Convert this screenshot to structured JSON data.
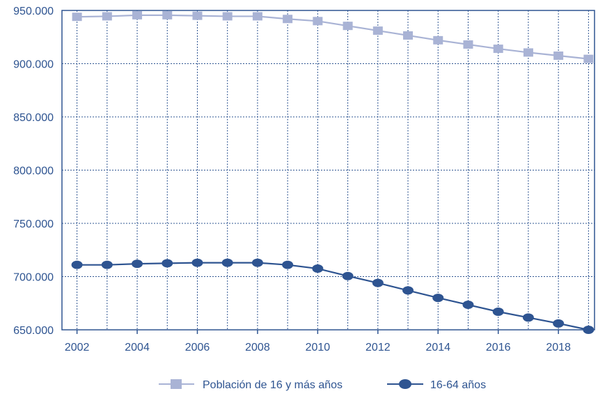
{
  "chart_data": {
    "type": "line",
    "title": "",
    "xlabel": "",
    "ylabel": "",
    "x": [
      2002,
      2003,
      2004,
      2005,
      2006,
      2007,
      2008,
      2009,
      2010,
      2011,
      2012,
      2013,
      2014,
      2015,
      2016,
      2017,
      2018,
      2019
    ],
    "x_tick_labels": [
      "2002",
      "2004",
      "2006",
      "2008",
      "2010",
      "2012",
      "2014",
      "2016",
      "2018"
    ],
    "y_tick_labels": [
      "650.000",
      "700.000",
      "750.000",
      "800.000",
      "850.000",
      "900.000",
      "950.000"
    ],
    "xlim": [
      2001.5,
      2019.2
    ],
    "ylim": [
      650000,
      950000
    ],
    "grid": true,
    "legend_position": "bottom",
    "series": [
      {
        "name": "Población de 16 y más años",
        "color": "#a9b3d5",
        "marker": "square",
        "values": [
          944000,
          944500,
          945500,
          945500,
          945000,
          944500,
          944500,
          942000,
          940000,
          935500,
          931000,
          926500,
          922000,
          918000,
          914000,
          910500,
          907500,
          904500
        ]
      },
      {
        "name": "16-64 años",
        "color": "#2e5491",
        "marker": "circle",
        "values": [
          711000,
          711000,
          712000,
          712500,
          713000,
          713000,
          713000,
          711000,
          707500,
          700500,
          694000,
          687000,
          680000,
          673500,
          667000,
          661500,
          656000,
          650000
        ]
      }
    ]
  }
}
